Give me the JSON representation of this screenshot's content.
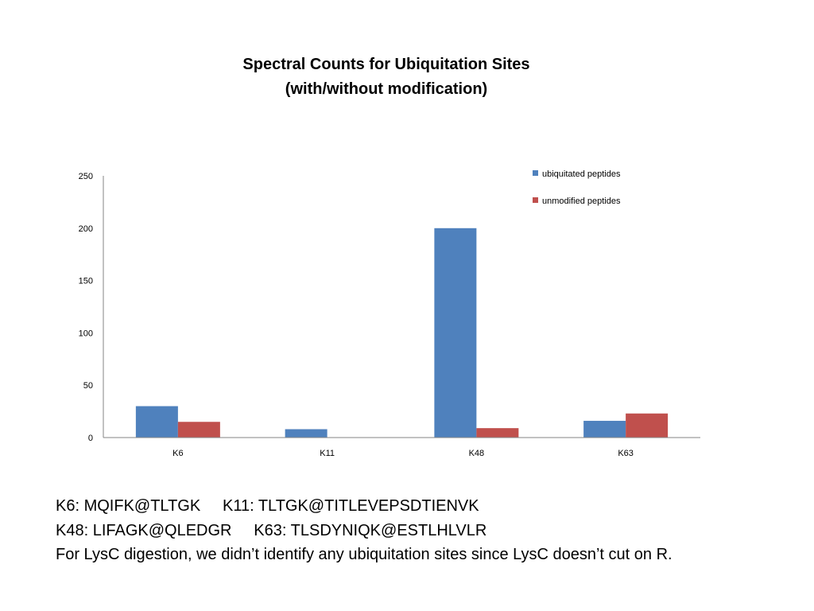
{
  "chart_data": {
    "type": "bar",
    "title": [
      "Spectral Counts for Ubiquitation Sites",
      "(with/without modification)"
    ],
    "categories": [
      "K6",
      "K11",
      "K48",
      "K63"
    ],
    "series": [
      {
        "name": "ubiquitated peptides",
        "values": [
          30,
          8,
          200,
          16
        ],
        "color": "#4f81bd"
      },
      {
        "name": "unmodified peptides",
        "values": [
          15,
          0,
          9,
          23
        ],
        "color": "#c0504d"
      }
    ],
    "ylim": [
      0,
      250
    ],
    "yticks": [
      "0",
      "50",
      "100",
      "150",
      "200",
      "250"
    ],
    "grid": false,
    "legend": "top-right"
  },
  "notes": {
    "line1_a": "K6: MQIFK@TLTGK",
    "line1_b": "K11: TLTGK@TITLEVEPSDTIENVK",
    "line2_a": "K48: LIFAGK@QLEDGR",
    "line2_b": "K63: TLSDYNIQK@ESTLHLVLR",
    "line3": "For LysC digestion, we didn’t identify any ubiquitation sites since LysC doesn’t cut on R."
  }
}
